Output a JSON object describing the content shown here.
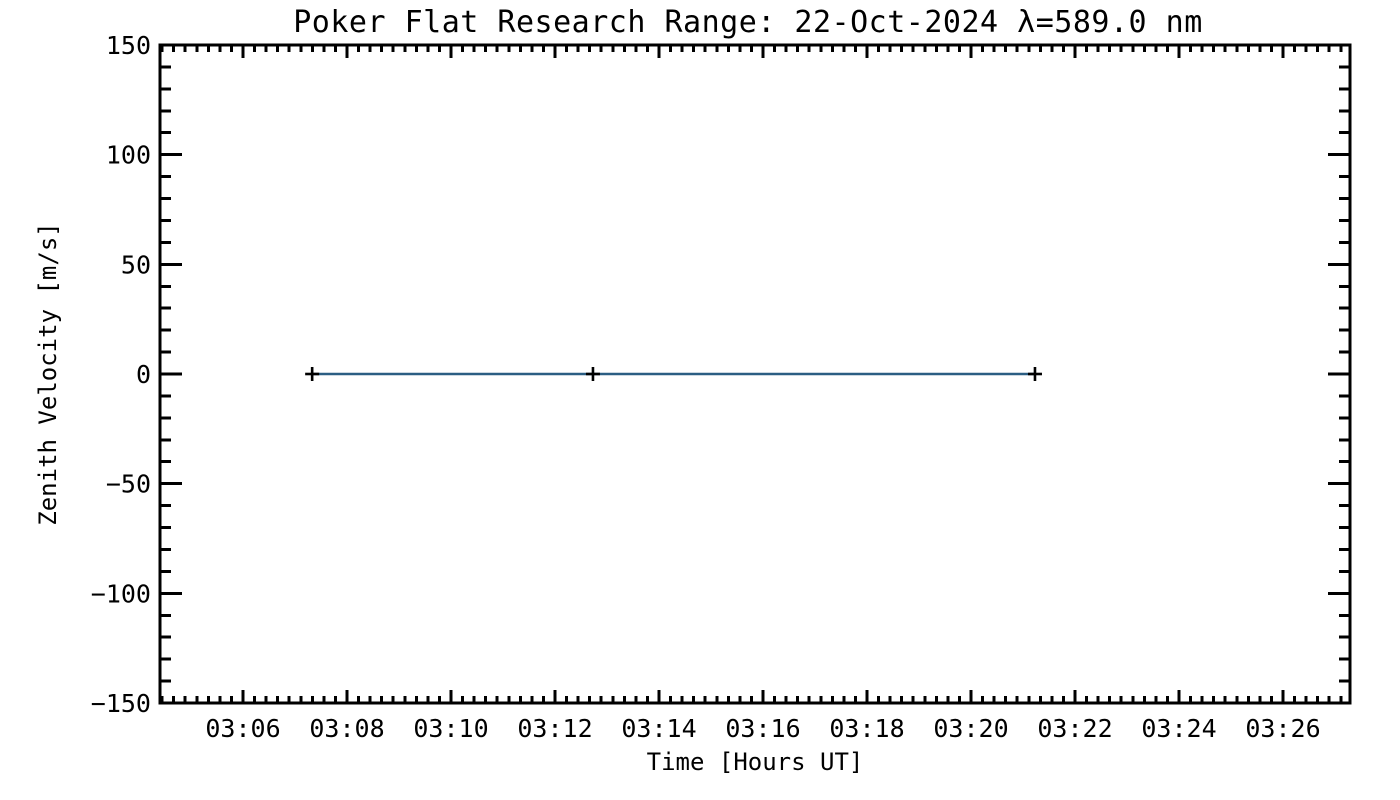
{
  "chart_data": {
    "type": "line",
    "title": "Poker Flat Research Range: 22-Oct-2024 λ=589.0 nm",
    "x_axis": {
      "label": "Time [Hours UT]",
      "tick_labels": [
        "03:06",
        "03:08",
        "03:10",
        "03:12",
        "03:14",
        "03:16",
        "03:18",
        "03:20",
        "03:22",
        "03:24",
        "03:26"
      ],
      "tick_minutes_after_0300": [
        6,
        8,
        10,
        12,
        14,
        16,
        18,
        20,
        22,
        24,
        26
      ],
      "range_minutes_after_0300": [
        4.404,
        27.288
      ],
      "major_interval_minutes": 2,
      "minor_divisions_per_interval": 9
    },
    "y_axis": {
      "label": "Zenith Velocity [m/s]",
      "tick_labels": [
        "150",
        "100",
        "50",
        "0",
        "−50",
        "−100",
        "−150"
      ],
      "tick_values": [
        150,
        100,
        50,
        0,
        -50,
        -100,
        -150
      ],
      "range": [
        -150,
        150
      ],
      "minor_step": 10
    },
    "grid": false,
    "legend": null,
    "colors": {
      "background": "#ffffff",
      "axis": "#000000",
      "text": "#000000",
      "line": "#2b5e83",
      "marker": "#000000"
    },
    "series": [
      {
        "name": "zenith-velocity",
        "marker": "plus",
        "points": [
          {
            "time_ut": "03:07:20",
            "minutes_after_0300": 7.33,
            "value_mps": 0
          },
          {
            "time_ut": "03:12:44",
            "minutes_after_0300": 12.73,
            "value_mps": 0
          },
          {
            "time_ut": "03:21:14",
            "minutes_after_0300": 21.23,
            "value_mps": 0
          }
        ]
      }
    ]
  }
}
